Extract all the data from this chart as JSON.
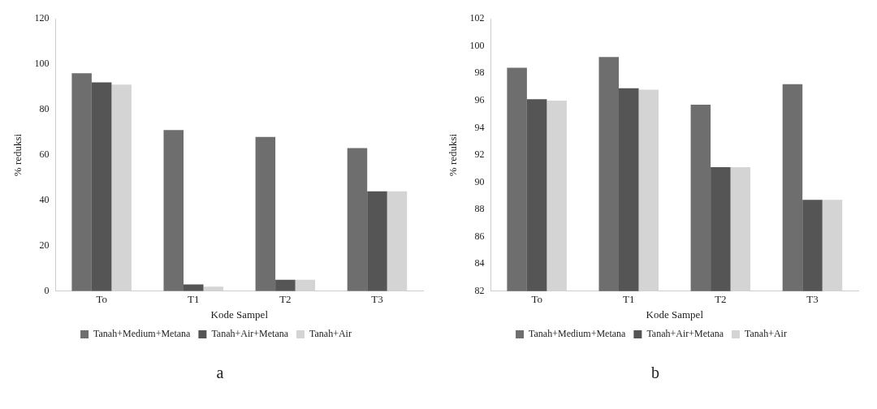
{
  "chart_data": [
    {
      "type": "bar",
      "categories": [
        "To",
        "T1",
        "T2",
        "T3"
      ],
      "xlabel": "Kode Sampel",
      "ylabel": "% reduksi",
      "ylim": [
        0,
        120
      ],
      "yticks": [
        0,
        20,
        40,
        60,
        80,
        100,
        120
      ],
      "grid": false,
      "legend": "bottom",
      "annotations": [
        "a"
      ],
      "series": [
        {
          "name": "Tanah+Medium+Metana",
          "color": "#6e6e6e",
          "values": [
            96,
            71,
            68,
            63
          ]
        },
        {
          "name": "Tanah+Air+Metana",
          "color": "#555555",
          "values": [
            92,
            3,
            5,
            44
          ]
        },
        {
          "name": "Tanah+Air",
          "color": "#d4d4d4",
          "values": [
            91,
            2,
            5,
            44
          ]
        }
      ]
    },
    {
      "type": "bar",
      "categories": [
        "To",
        "T1",
        "T2",
        "T3"
      ],
      "xlabel": "Kode Sampel",
      "ylabel": "% reduksi",
      "ylim": [
        82,
        102
      ],
      "yticks": [
        82,
        84,
        86,
        88,
        90,
        92,
        94,
        96,
        98,
        100,
        102
      ],
      "grid": false,
      "legend": "bottom",
      "annotations": [
        "b"
      ],
      "series": [
        {
          "name": "Tanah+Medium+Metana",
          "color": "#6e6e6e",
          "values": [
            98.4,
            99.2,
            95.7,
            97.2
          ]
        },
        {
          "name": "Tanah+Air+Metana",
          "color": "#555555",
          "values": [
            96.1,
            96.9,
            91.1,
            88.7
          ]
        },
        {
          "name": "Tanah+Air",
          "color": "#d4d4d4",
          "values": [
            96,
            96.8,
            91.1,
            88.7
          ]
        }
      ]
    }
  ]
}
